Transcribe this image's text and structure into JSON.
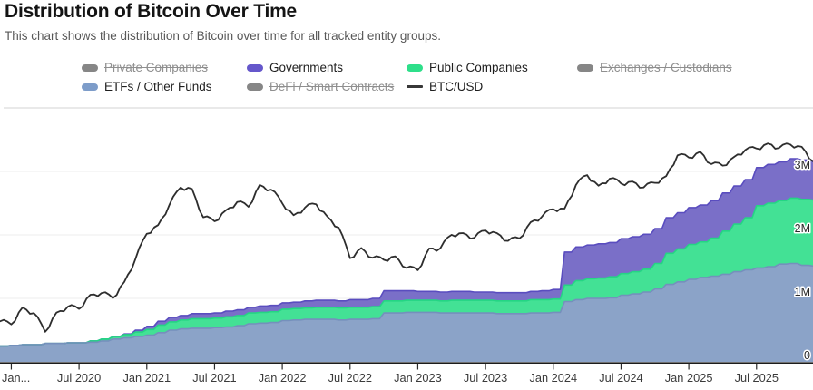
{
  "page": {
    "title": "Distribution of Bitcoin Over Time",
    "subtitle": "This chart shows the distribution of Bitcoin over time for all tracked entity groups."
  },
  "colors": {
    "grid": "#ececec",
    "top_divider": "#dcdcdc",
    "axis": "#1c1c1c",
    "tick": "#2a2a2a",
    "x_label": "#3a3a3a",
    "y_label": "#2a2a2a",
    "disabled_legend": "#868686"
  },
  "legend": {
    "rows": [
      [
        {
          "label": "Private Companies",
          "type": "area",
          "color": "#868686",
          "enabled": false
        },
        {
          "label": "Governments",
          "type": "area",
          "color": "#6557cb",
          "enabled": true
        },
        {
          "label": "Public Companies",
          "type": "area",
          "color": "#2edf8a",
          "enabled": true
        },
        {
          "label": "Exchanges / Custodians",
          "type": "area",
          "color": "#868686",
          "enabled": false
        }
      ],
      [
        {
          "label": "ETFs / Other Funds",
          "type": "area",
          "color": "#7d9cc9",
          "enabled": true
        },
        {
          "label": "DeFi / Smart Contracts",
          "type": "area",
          "color": "#868686",
          "enabled": false
        },
        {
          "label": "BTC/USD",
          "type": "line",
          "color": "#383838",
          "enabled": true
        }
      ]
    ]
  },
  "chart_data": {
    "type": "area",
    "stacked": true,
    "title": "Distribution of Bitcoin Over Time",
    "grid": true,
    "legend_position": "top",
    "months": [
      "2019-12",
      "2020-01",
      "2020-02",
      "2020-03",
      "2020-04",
      "2020-05",
      "2020-06",
      "2020-07",
      "2020-08",
      "2020-09",
      "2020-10",
      "2020-11",
      "2020-12",
      "2021-01",
      "2021-02",
      "2021-03",
      "2021-04",
      "2021-05",
      "2021-06",
      "2021-07",
      "2021-08",
      "2021-09",
      "2021-10",
      "2021-11",
      "2021-12",
      "2022-01",
      "2022-02",
      "2022-03",
      "2022-04",
      "2022-05",
      "2022-06",
      "2022-07",
      "2022-08",
      "2022-09",
      "2022-10",
      "2022-11",
      "2022-12",
      "2023-01",
      "2023-02",
      "2023-03",
      "2023-04",
      "2023-05",
      "2023-06",
      "2023-07",
      "2023-08",
      "2023-09",
      "2023-10",
      "2023-11",
      "2023-12",
      "2024-01",
      "2024-02",
      "2024-03",
      "2024-04",
      "2024-05",
      "2024-06",
      "2024-07",
      "2024-08",
      "2024-09",
      "2024-10",
      "2024-11",
      "2024-12",
      "2025-01",
      "2025-02",
      "2025-03",
      "2025-04",
      "2025-05",
      "2025-06",
      "2025-07",
      "2025-08",
      "2025-09",
      "2025-10",
      "2025-11",
      "2025-12"
    ],
    "unit": "M BTC",
    "series": [
      {
        "name": "ETFs / Other Funds",
        "color": "#8ba3c8",
        "edge": "#7590bc",
        "values": [
          0.25,
          0.26,
          0.27,
          0.27,
          0.29,
          0.29,
          0.3,
          0.3,
          0.31,
          0.33,
          0.36,
          0.38,
          0.4,
          0.42,
          0.46,
          0.5,
          0.52,
          0.53,
          0.53,
          0.54,
          0.55,
          0.57,
          0.6,
          0.61,
          0.62,
          0.65,
          0.66,
          0.67,
          0.67,
          0.67,
          0.66,
          0.67,
          0.67,
          0.68,
          0.77,
          0.77,
          0.78,
          0.78,
          0.78,
          0.77,
          0.77,
          0.77,
          0.77,
          0.77,
          0.76,
          0.76,
          0.76,
          0.77,
          0.77,
          0.78,
          0.95,
          0.98,
          1.0,
          1.0,
          1.01,
          1.05,
          1.07,
          1.1,
          1.15,
          1.22,
          1.26,
          1.3,
          1.33,
          1.35,
          1.38,
          1.42,
          1.45,
          1.48,
          1.5,
          1.54,
          1.55,
          1.52,
          1.51
        ]
      },
      {
        "name": "Public Companies",
        "color": "#43e195",
        "edge": "#25d584",
        "values": [
          0.0,
          0.0,
          0.0,
          0.0,
          0.0,
          0.0,
          0.0,
          0.0,
          0.02,
          0.03,
          0.04,
          0.05,
          0.07,
          0.09,
          0.12,
          0.13,
          0.14,
          0.15,
          0.15,
          0.15,
          0.16,
          0.16,
          0.17,
          0.17,
          0.17,
          0.18,
          0.18,
          0.18,
          0.19,
          0.19,
          0.19,
          0.19,
          0.19,
          0.19,
          0.19,
          0.19,
          0.19,
          0.19,
          0.19,
          0.19,
          0.2,
          0.2,
          0.2,
          0.2,
          0.2,
          0.2,
          0.2,
          0.21,
          0.21,
          0.21,
          0.26,
          0.3,
          0.31,
          0.32,
          0.33,
          0.34,
          0.35,
          0.36,
          0.4,
          0.49,
          0.52,
          0.55,
          0.56,
          0.6,
          0.68,
          0.75,
          0.82,
          0.98,
          1.0,
          1.0,
          1.03,
          1.04,
          1.04
        ]
      },
      {
        "name": "Governments",
        "color": "#7a6fc8",
        "edge": "#5a4dbf",
        "values": [
          0.0,
          0.0,
          0.0,
          0.0,
          0.0,
          0.0,
          0.0,
          0.0,
          0.0,
          0.0,
          0.0,
          0.01,
          0.03,
          0.05,
          0.06,
          0.07,
          0.07,
          0.08,
          0.08,
          0.08,
          0.09,
          0.09,
          0.09,
          0.1,
          0.1,
          0.1,
          0.1,
          0.11,
          0.11,
          0.11,
          0.11,
          0.12,
          0.12,
          0.13,
          0.16,
          0.16,
          0.15,
          0.14,
          0.14,
          0.14,
          0.14,
          0.14,
          0.13,
          0.13,
          0.13,
          0.13,
          0.13,
          0.13,
          0.14,
          0.15,
          0.52,
          0.53,
          0.53,
          0.54,
          0.54,
          0.55,
          0.55,
          0.55,
          0.55,
          0.56,
          0.57,
          0.58,
          0.58,
          0.59,
          0.6,
          0.6,
          0.6,
          0.6,
          0.61,
          0.61,
          0.62,
          0.62,
          0.62
        ]
      }
    ],
    "line_series": {
      "name": "BTC/USD",
      "color": "#2d2d2d",
      "unit": "USD",
      "values": [
        7550,
        7200,
        9350,
        8550,
        6430,
        8630,
        9450,
        9140,
        11350,
        11650,
        10780,
        13800,
        19700,
        29000,
        33100,
        45100,
        58900,
        57750,
        37300,
        35050,
        41500,
        47100,
        43800,
        61300,
        57000,
        46200,
        38500,
        43200,
        45550,
        37650,
        31800,
        19900,
        23300,
        20050,
        19400,
        20500,
        17150,
        16550,
        23100,
        23150,
        28500,
        29250,
        27200,
        30450,
        29250,
        25950,
        26950,
        34650,
        37700,
        42250,
        42600,
        61200,
        71300,
        60600,
        67500,
        62700,
        64600,
        59000,
        63300,
        70200,
        96400,
        93400,
        102100,
        84400,
        82500,
        94200,
        104600,
        107100,
        115800,
        108200,
        114000,
        110000,
        88000
      ]
    },
    "y_axis": {
      "side": "right",
      "min": 0,
      "max": 4,
      "ticks": [
        {
          "v": 0,
          "label": "0"
        },
        {
          "v": 1,
          "label": "1M"
        },
        {
          "v": 2,
          "label": "2M"
        },
        {
          "v": 3,
          "label": "3M"
        }
      ]
    },
    "price_axis": {
      "scale": "log",
      "min": 4050,
      "max": 200000
    },
    "x_ticks": [
      {
        "i": 1,
        "label": "Jan..."
      },
      {
        "i": 7,
        "label": "Jul 2020"
      },
      {
        "i": 13,
        "label": "Jan 2021"
      },
      {
        "i": 19,
        "label": "Jul 2021"
      },
      {
        "i": 25,
        "label": "Jan 2022"
      },
      {
        "i": 31,
        "label": "Jul 2022"
      },
      {
        "i": 37,
        "label": "Jan 2023"
      },
      {
        "i": 43,
        "label": "Jul 2023"
      },
      {
        "i": 49,
        "label": "Jan 2024"
      },
      {
        "i": 55,
        "label": "Jul 2024"
      },
      {
        "i": 61,
        "label": "Jan 2025"
      },
      {
        "i": 67,
        "label": "Jul 2025"
      }
    ],
    "disabled_series": [
      "Private Companies",
      "Exchanges / Custodians",
      "DeFi / Smart Contracts"
    ]
  }
}
